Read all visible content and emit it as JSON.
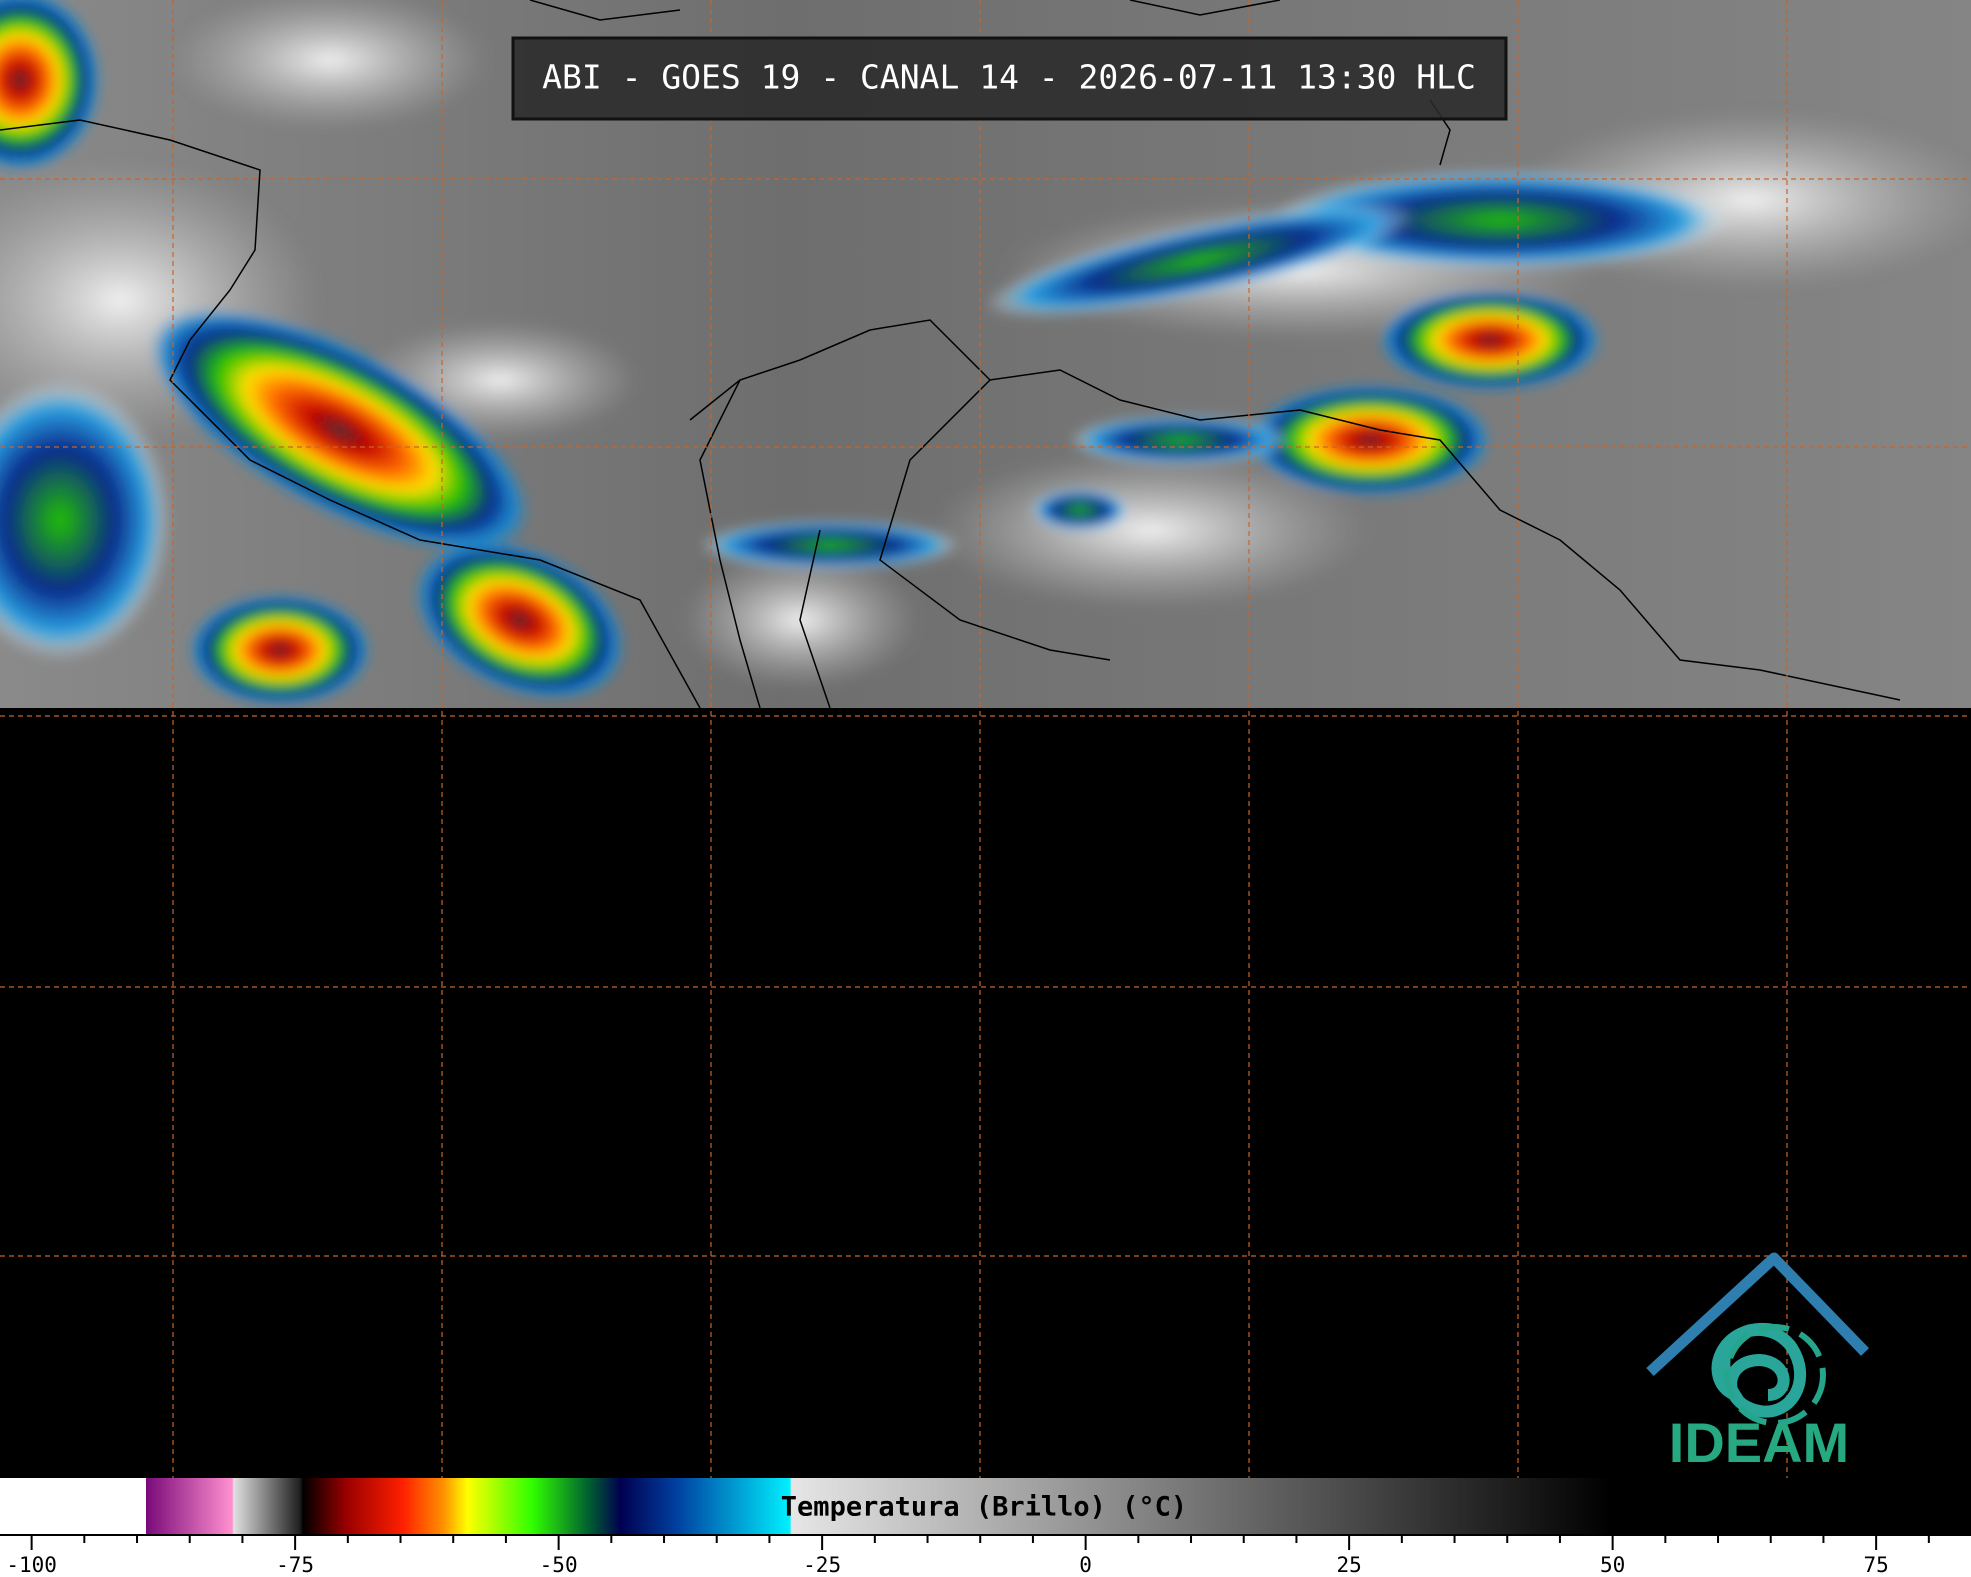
{
  "title": "ABI - GOES 19 - CANAL 14 - 2026-07-11 13:30 HLC",
  "colorbar": {
    "label": "Temperatura (Brillo) (°C)",
    "xlim": [
      -103,
      84
    ],
    "ticks": [
      -100,
      -75,
      -50,
      -25,
      0,
      25,
      50,
      75
    ],
    "minor_ticks": [
      -95,
      -90,
      -85,
      -80,
      -70,
      -65,
      -60,
      -55,
      -45,
      -40,
      -35,
      -30,
      -20,
      -15,
      -10,
      -5,
      5,
      10,
      15,
      20,
      30,
      35,
      40,
      45,
      55,
      60,
      65,
      70,
      80
    ]
  },
  "logo": "IDEAM"
}
